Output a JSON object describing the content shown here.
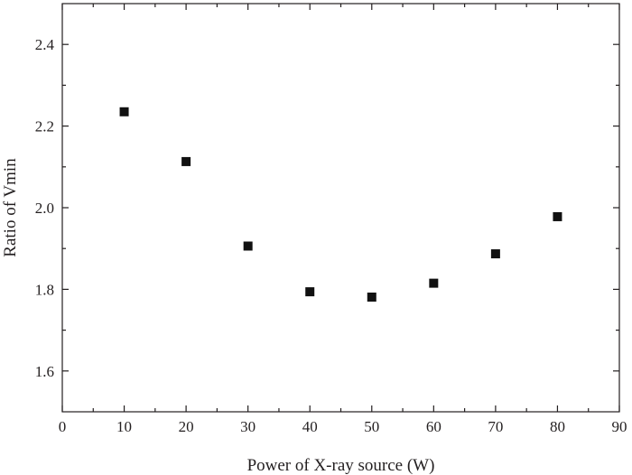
{
  "chart_data": {
    "type": "scatter",
    "title": "",
    "xlabel": "Power of X-ray source (W)",
    "ylabel": "Ratio of Vmin",
    "xlim": [
      0,
      90
    ],
    "ylim": [
      1.5,
      2.5
    ],
    "xticks": [
      0,
      10,
      20,
      30,
      40,
      50,
      60,
      70,
      80,
      90
    ],
    "xtick_labels": [
      "0",
      "10",
      "20",
      "30",
      "40",
      "50",
      "60",
      "70",
      "80",
      "90"
    ],
    "yticks": [
      1.6,
      1.8,
      2.0,
      2.2,
      2.4
    ],
    "ytick_labels": [
      "1.6",
      "1.8",
      "2.0",
      "2.2",
      "2.4"
    ],
    "grid": false,
    "marker": "filled-square",
    "colors": {
      "marker": "#111111",
      "axis": "#231f20"
    },
    "series": [
      {
        "x": [
          10,
          20,
          30,
          40,
          50,
          60,
          70,
          80
        ],
        "y": [
          2.235,
          2.113,
          1.906,
          1.794,
          1.781,
          1.815,
          1.887,
          1.978
        ]
      }
    ]
  }
}
